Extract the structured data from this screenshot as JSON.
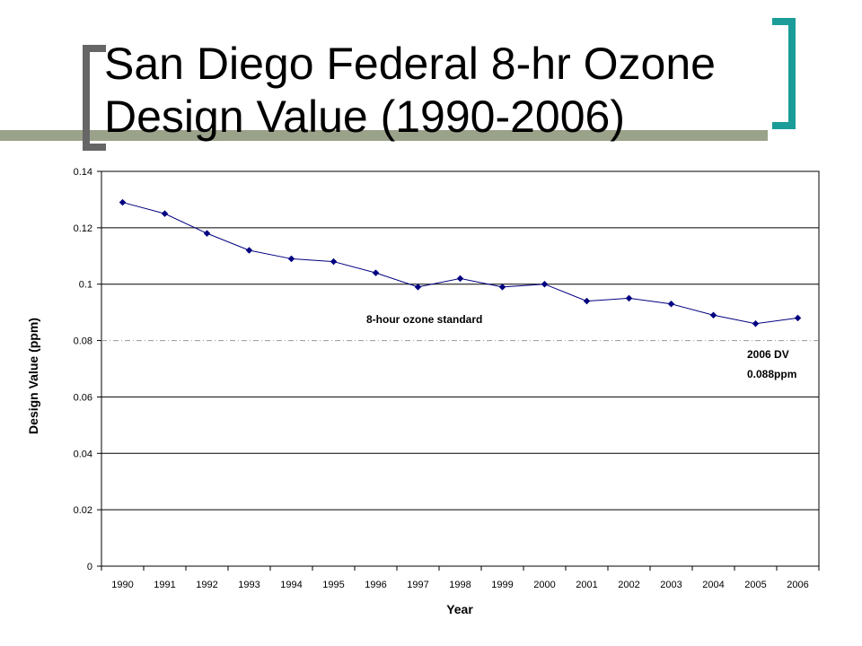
{
  "slide": {
    "title_line1": "San Diego Federal 8-hr Ozone",
    "title_line2": "Design Value (1990-2006)",
    "accent_colors": {
      "olive_bar": "#9aa28a",
      "gray_bracket": "#666666",
      "teal_bracket": "#1a9c98"
    }
  },
  "chart_data": {
    "type": "line",
    "title": "",
    "xlabel": "Year",
    "ylabel": "Design Value (ppm)",
    "categories": [
      "1990",
      "1991",
      "1992",
      "1993",
      "1994",
      "1995",
      "1996",
      "1997",
      "1998",
      "1999",
      "2000",
      "2001",
      "2002",
      "2003",
      "2004",
      "2005",
      "2006"
    ],
    "series": [
      {
        "values": [
          0.129,
          0.125,
          0.118,
          0.112,
          0.109,
          0.108,
          0.104,
          0.099,
          0.102,
          0.099,
          0.1,
          0.094,
          0.095,
          0.093,
          0.089,
          0.086,
          0.088
        ],
        "color": "#000080",
        "marker": "diamond"
      }
    ],
    "ylim": [
      0,
      0.14
    ],
    "y_ticks": [
      "0",
      "0.02",
      "0.04",
      "0.06",
      "0.08",
      "0.1",
      "0.12",
      "0.14"
    ],
    "y_tick_values": [
      0,
      0.02,
      0.04,
      0.06,
      0.08,
      0.1,
      0.12,
      0.14
    ],
    "grid": true,
    "legend": "none",
    "reference_line": {
      "value": 0.08,
      "label": "8-hour ozone standard",
      "style": "dash-dot"
    },
    "annotations": [
      {
        "line1": "2006 DV",
        "line2": "0.088ppm"
      }
    ]
  }
}
